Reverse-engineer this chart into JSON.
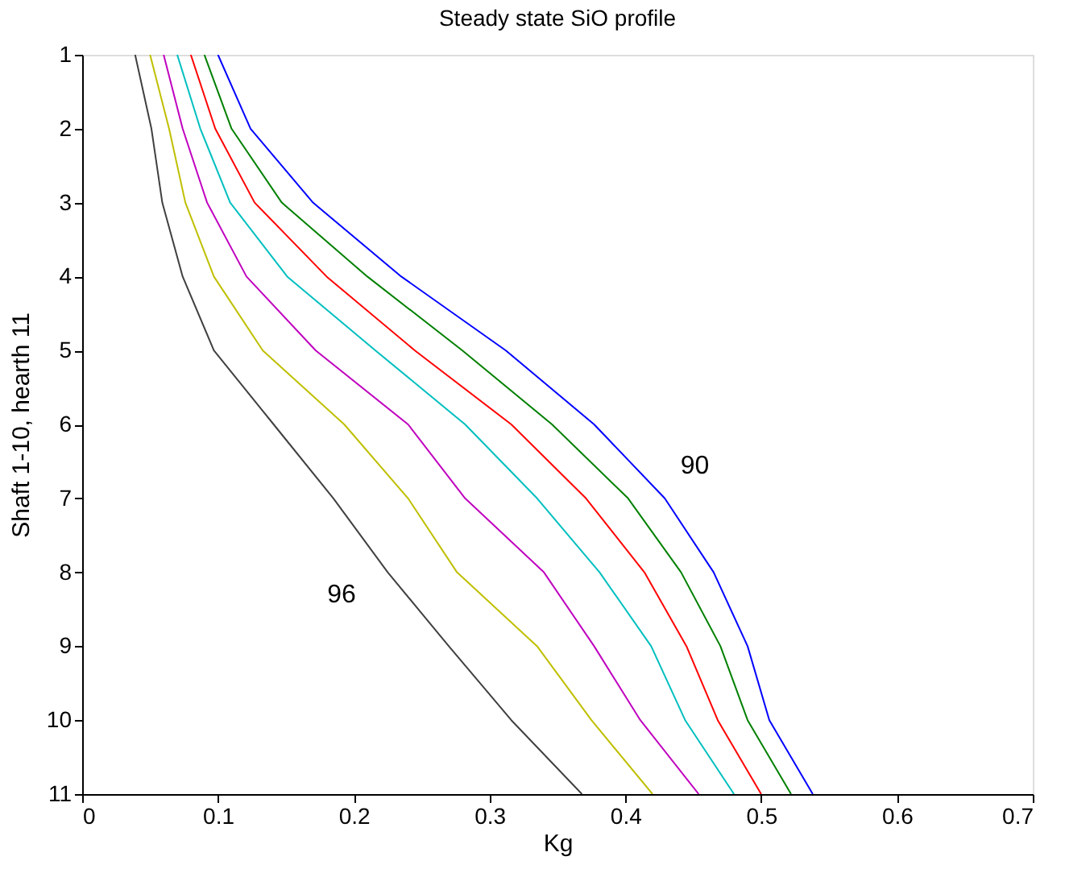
{
  "chart_data": {
    "type": "line",
    "title": "Steady state SiO profile",
    "xlabel": "Kg",
    "ylabel": "Shaft 1-10, hearth 11",
    "xlim": [
      0,
      0.7
    ],
    "xticks": [
      0,
      0.1,
      0.2,
      0.3,
      0.4,
      0.5,
      0.6,
      0.7
    ],
    "ylim": [
      11,
      1
    ],
    "yticks": [
      1,
      2,
      3,
      4,
      5,
      6,
      7,
      8,
      9,
      10,
      11
    ],
    "grid": false,
    "legend": false,
    "marker": "none",
    "line_style": "solid",
    "series": [
      {
        "color": "#0000ff",
        "x": [
          0.1,
          0.124,
          0.17,
          0.235,
          0.312,
          0.377,
          0.429,
          0.465,
          0.49,
          0.506,
          0.538
        ],
        "values": [
          1,
          2,
          3,
          4,
          5,
          6,
          7,
          8,
          9,
          10,
          11
        ]
      },
      {
        "color": "#008000",
        "x": [
          0.09,
          0.11,
          0.147,
          0.21,
          0.28,
          0.346,
          0.402,
          0.441,
          0.47,
          0.49,
          0.522
        ],
        "values": [
          1,
          2,
          3,
          4,
          5,
          6,
          7,
          8,
          9,
          10,
          11
        ]
      },
      {
        "color": "#ff0000",
        "x": [
          0.08,
          0.098,
          0.127,
          0.18,
          0.245,
          0.316,
          0.371,
          0.414,
          0.445,
          0.468,
          0.5
        ],
        "values": [
          1,
          2,
          3,
          4,
          5,
          6,
          7,
          8,
          9,
          10,
          11
        ]
      },
      {
        "color": "#00bfbf",
        "x": [
          0.07,
          0.087,
          0.109,
          0.151,
          0.216,
          0.282,
          0.335,
          0.381,
          0.419,
          0.444,
          0.48
        ],
        "values": [
          1,
          2,
          3,
          4,
          5,
          6,
          7,
          8,
          9,
          10,
          11
        ]
      },
      {
        "color": "#bf00bf",
        "x": [
          0.06,
          0.074,
          0.092,
          0.121,
          0.172,
          0.24,
          0.282,
          0.34,
          0.377,
          0.411,
          0.454
        ],
        "values": [
          1,
          2,
          3,
          4,
          5,
          6,
          7,
          8,
          9,
          10,
          11
        ]
      },
      {
        "color": "#bfbf00",
        "x": [
          0.05,
          0.064,
          0.076,
          0.097,
          0.133,
          0.193,
          0.24,
          0.276,
          0.335,
          0.375,
          0.42
        ],
        "values": [
          1,
          2,
          3,
          4,
          5,
          6,
          7,
          8,
          9,
          10,
          11
        ]
      },
      {
        "color": "#404040",
        "x": [
          0.039,
          0.051,
          0.059,
          0.074,
          0.097,
          0.141,
          0.185,
          0.225,
          0.27,
          0.316,
          0.368
        ],
        "values": [
          1,
          2,
          3,
          4,
          5,
          6,
          7,
          8,
          9,
          10,
          11
        ]
      }
    ],
    "annotations": [
      "90",
      "96"
    ]
  }
}
